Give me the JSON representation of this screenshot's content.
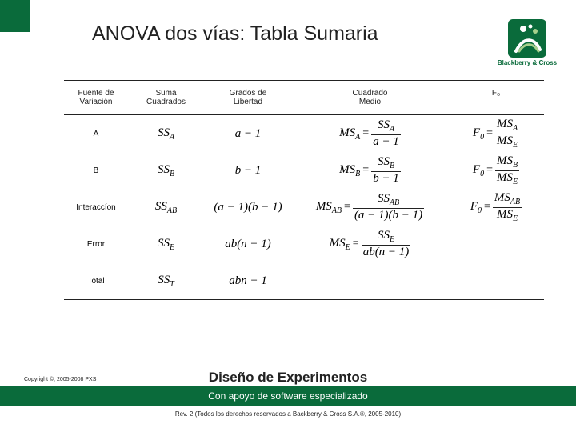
{
  "brand": {
    "name": "Blackberry & Cross",
    "accent_color": "#0a6b3b"
  },
  "title": "ANOVA dos vías: Tabla Sumaria",
  "table": {
    "headers": {
      "source": "Fuente de\nVariación",
      "ss": "Suma\nCuadrados",
      "df": "Grados de\nLibertad",
      "ms": "Cuadrado\nMedio",
      "f": "F₀"
    },
    "rows": [
      {
        "source": "A",
        "ss": "SS_A",
        "df": "a − 1",
        "ms_lhs": "MS_A",
        "ms_num": "SS_A",
        "ms_den": "a − 1",
        "f_lhs": "F₀",
        "f_num": "MS_A",
        "f_den": "MS_E"
      },
      {
        "source": "B",
        "ss": "SS_B",
        "df": "b − 1",
        "ms_lhs": "MS_B",
        "ms_num": "SS_B",
        "ms_den": "b − 1",
        "f_lhs": "F₀",
        "f_num": "MS_B",
        "f_den": "MS_E"
      },
      {
        "source": "Interaccíon",
        "ss": "SS_AB",
        "df": "(a − 1)(b − 1)",
        "ms_lhs": "MS_AB",
        "ms_num": "SS_AB",
        "ms_den": "(a − 1)(b − 1)",
        "f_lhs": "F₀",
        "f_num": "MS_AB",
        "f_den": "MS_E"
      },
      {
        "source": "Error",
        "ss": "SS_E",
        "df": "ab(n − 1)",
        "ms_lhs": "MS_E",
        "ms_num": "SS_E",
        "ms_den": "ab(n − 1)",
        "f_lhs": "",
        "f_num": "",
        "f_den": ""
      },
      {
        "source": "Total",
        "ss": "SS_T",
        "df": "abn − 1",
        "ms_lhs": "",
        "ms_num": "",
        "ms_den": "",
        "f_lhs": "",
        "f_num": "",
        "f_den": ""
      }
    ]
  },
  "footer": {
    "title": "Diseño de Experimentos",
    "subtitle": "Con apoyo de software especializado",
    "small": "Rev. 2 (Todos los derechos reservados a Backberry & Cross S.A.®, 2005-2010)",
    "copyright": "Copyright ©, 2005-2008 PXS"
  }
}
